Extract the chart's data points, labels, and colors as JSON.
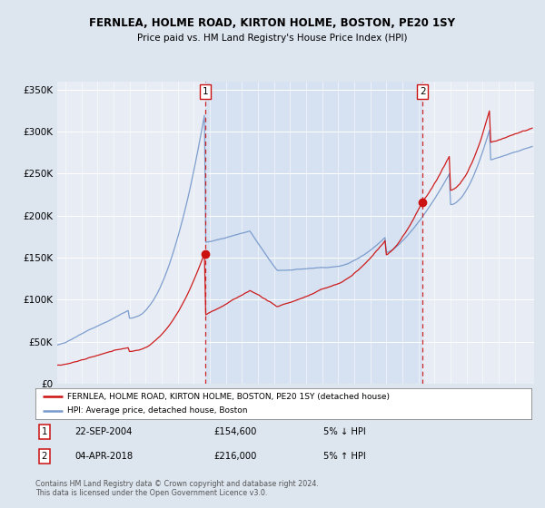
{
  "title": "FERNLEA, HOLME ROAD, KIRTON HOLME, BOSTON, PE20 1SY",
  "subtitle": "Price paid vs. HM Land Registry's House Price Index (HPI)",
  "legend_line1": "FERNLEA, HOLME ROAD, KIRTON HOLME, BOSTON, PE20 1SY (detached house)",
  "legend_line2": "HPI: Average price, detached house, Boston",
  "sale1_date": "22-SEP-2004",
  "sale1_price": 154600,
  "sale1_label": "1",
  "sale1_hpi": "5% ↓ HPI",
  "sale2_date": "04-APR-2018",
  "sale2_price": 216000,
  "sale2_label": "2",
  "sale2_hpi": "5% ↑ HPI",
  "footer": "Contains HM Land Registry data © Crown copyright and database right 2024.\nThis data is licensed under the Open Government Licence v3.0.",
  "bg_color": "#dde5ef",
  "plot_bg_color": "#e8edf5",
  "shade_color": "#c8d8ee",
  "red_color": "#cc1111",
  "blue_color": "#7799cc",
  "vline_color": "#cc1111",
  "ylim_min": 0,
  "ylim_max": 360000,
  "yticks": [
    0,
    50000,
    100000,
    150000,
    200000,
    250000,
    300000,
    350000
  ],
  "sale1_x": 2004.73,
  "sale2_x": 2018.25,
  "xmin": 1995.5,
  "xmax": 2025.2
}
